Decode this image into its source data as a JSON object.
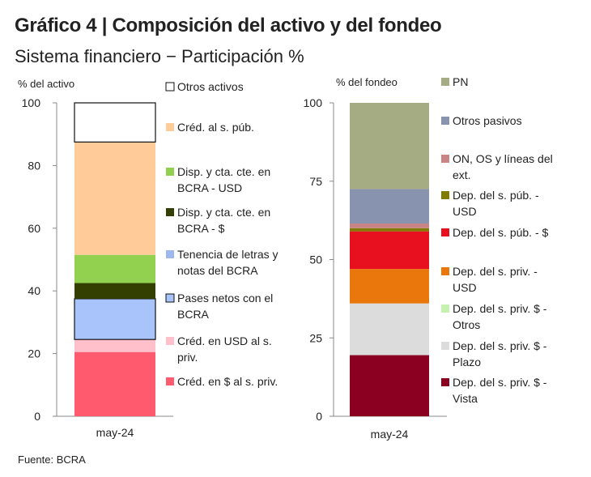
{
  "title": "Gráfico 4 | Composición del activo y del fondeo",
  "subtitle": "Sistema financiero − Participación %",
  "source": "Fuente: BCRA",
  "chart_data": [
    {
      "type": "bar",
      "stacked": true,
      "ylabel": "% del activo",
      "ylim": [
        0,
        100
      ],
      "yticks": [
        0,
        20,
        40,
        60,
        80,
        100
      ],
      "categories": [
        "may-24"
      ],
      "series": [
        {
          "name": "Créd. en $ al s. priv.",
          "values": [
            20.5
          ],
          "color": "#FF5A6E"
        },
        {
          "name": "Créd. en USD al s. priv.",
          "values": [
            4.0
          ],
          "color": "#FFC0CB"
        },
        {
          "name": "Pases netos con el BCRA",
          "values": [
            13.0
          ],
          "color": "#A9C4FA",
          "outlined": true
        },
        {
          "name": "Tenencia de letras y notas del BCRA",
          "values": [
            0.0
          ],
          "color": "#9DB8F0"
        },
        {
          "name": "Disp. y cta. cte. en BCRA - $",
          "values": [
            5.0
          ],
          "color": "#333F00"
        },
        {
          "name": "Disp. y cta. cte. en BCRA - USD",
          "values": [
            9.0
          ],
          "color": "#92D050"
        },
        {
          "name": "Créd. al s. púb.",
          "values": [
            36.0
          ],
          "color": "#FFCC99"
        },
        {
          "name": "Otros activos",
          "values": [
            12.5
          ],
          "color": "#FFFFFF",
          "outlined": true
        }
      ],
      "legend_order": [
        "Otros activos",
        "Créd. al s. púb.",
        "Disp. y cta. cte. en BCRA - USD",
        "Disp. y cta. cte. en BCRA - $",
        "Tenencia de letras y notas del BCRA",
        "Pases netos con el BCRA",
        "Créd. en USD al s. priv.",
        "Créd. en $ al s. priv."
      ],
      "legend_lines": [
        [
          "Otros activos"
        ],
        [
          "Créd. al s. púb."
        ],
        [
          "Disp. y cta. cte. en",
          "BCRA - USD"
        ],
        [
          "Disp. y cta. cte. en",
          "BCRA - $"
        ],
        [
          "Tenencia de letras y",
          "notas del BCRA"
        ],
        [
          "Pases netos con el",
          "BCRA"
        ],
        [
          "Créd. en USD al s.",
          "priv."
        ],
        [
          "Créd. en $ al s. priv."
        ]
      ]
    },
    {
      "type": "bar",
      "stacked": true,
      "ylabel": "% del fondeo",
      "ylim": [
        0,
        100
      ],
      "yticks": [
        0,
        25,
        50,
        75,
        100
      ],
      "categories": [
        "may-24"
      ],
      "series": [
        {
          "name": "Dep. del s. priv. $ - Vista",
          "values": [
            19.5
          ],
          "color": "#8B0020"
        },
        {
          "name": "Dep. del s. priv. $ - Plazo",
          "values": [
            16.5
          ],
          "color": "#DCDCDC"
        },
        {
          "name": "Dep. del s. priv. $ - Otros",
          "values": [
            0.0
          ],
          "color": "#C6F2B0"
        },
        {
          "name": "Dep. del s. priv. - USD",
          "values": [
            11.0
          ],
          "color": "#E9770C"
        },
        {
          "name": "Dep. del s. púb. - $",
          "values": [
            12.0
          ],
          "color": "#E8101E"
        },
        {
          "name": "Dep. del s. púb. - USD",
          "values": [
            1.0
          ],
          "color": "#7E7B00"
        },
        {
          "name": "ON, OS y líneas del ext.",
          "values": [
            1.5
          ],
          "color": "#C98586"
        },
        {
          "name": "Otros pasivos",
          "values": [
            11.0
          ],
          "color": "#8893AF"
        },
        {
          "name": "PN",
          "values": [
            27.5
          ],
          "color": "#A5AB83"
        }
      ],
      "legend_order": [
        "PN",
        "Otros pasivos",
        "ON, OS y líneas del ext.",
        "Dep. del s. púb. - USD",
        "Dep. del s. púb. - $",
        "Dep. del s. priv. - USD",
        "Dep. del s. priv. $ - Otros",
        "Dep. del s. priv. $ - Plazo",
        "Dep. del s. priv. $ - Vista"
      ],
      "legend_lines": [
        [
          "PN"
        ],
        [
          "Otros pasivos"
        ],
        [
          "ON, OS y líneas del",
          "ext."
        ],
        [
          "Dep. del s. púb. -",
          "USD"
        ],
        [
          "Dep. del s. púb. - $"
        ],
        [
          "Dep. del s. priv. -",
          "USD"
        ],
        [
          "Dep. del s. priv. $ -",
          "Otros"
        ],
        [
          "Dep. del s. priv. $ -",
          "Plazo"
        ],
        [
          "Dep. del s. priv. $ -",
          "Vista"
        ]
      ]
    }
  ]
}
